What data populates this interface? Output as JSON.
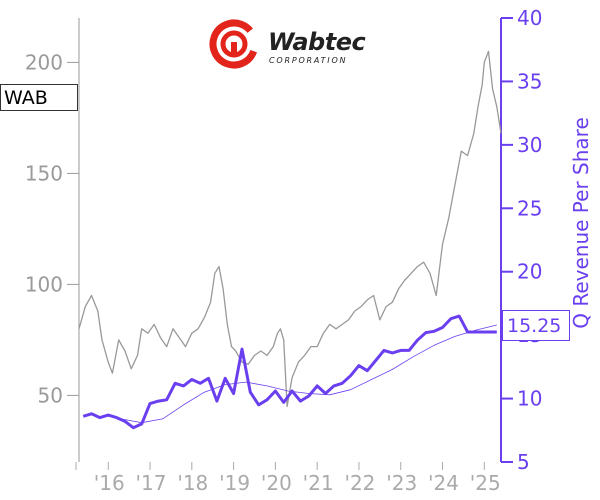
{
  "ticker": "WAB",
  "value_label": "15.25",
  "logo": {
    "name": "Wabtec",
    "subtitle": "CORPORATION"
  },
  "colors": {
    "price": "#999999",
    "revenue": "#6a3ff0",
    "axis_left": "#9a9a9a",
    "axis_right": "#6a3ff0"
  },
  "chart_data": {
    "type": "line",
    "title": "",
    "xlabel": "",
    "ylabel_left": "",
    "ylabel_right": "Q Revenue Per Share",
    "x_tick_labels": [
      "'16",
      "'17",
      "'18",
      "'19",
      "'20",
      "'21",
      "'22",
      "'23",
      "'24",
      "'25"
    ],
    "x_range": [
      2015.3,
      2025.4
    ],
    "y_left_range": [
      20,
      220
    ],
    "y_left_ticks": [
      50,
      100,
      150,
      200
    ],
    "y_right_range": [
      5,
      40
    ],
    "y_right_ticks": [
      5,
      10,
      15,
      20,
      25,
      30,
      35,
      40
    ],
    "series": [
      {
        "name": "WAB",
        "axis": "left",
        "x": [
          2015.3,
          2015.45,
          2015.6,
          2015.75,
          2015.85,
          2016.0,
          2016.1,
          2016.25,
          2016.4,
          2016.55,
          2016.7,
          2016.8,
          2016.95,
          2017.1,
          2017.25,
          2017.4,
          2017.55,
          2017.7,
          2017.85,
          2018.0,
          2018.15,
          2018.3,
          2018.45,
          2018.55,
          2018.65,
          2018.75,
          2018.85,
          2018.95,
          2019.05,
          2019.2,
          2019.35,
          2019.5,
          2019.65,
          2019.8,
          2019.95,
          2020.05,
          2020.12,
          2020.2,
          2020.28,
          2020.4,
          2020.55,
          2020.7,
          2020.85,
          2021.0,
          2021.15,
          2021.3,
          2021.45,
          2021.6,
          2021.75,
          2021.9,
          2022.05,
          2022.2,
          2022.35,
          2022.5,
          2022.65,
          2022.8,
          2022.95,
          2023.1,
          2023.25,
          2023.4,
          2023.55,
          2023.7,
          2023.85,
          2024.0,
          2024.15,
          2024.3,
          2024.45,
          2024.6,
          2024.75,
          2024.85,
          2024.95,
          2025.0,
          2025.1,
          2025.2,
          2025.3,
          2025.4
        ],
        "values": [
          80,
          90,
          95,
          88,
          75,
          65,
          60,
          75,
          70,
          62,
          68,
          80,
          78,
          82,
          76,
          72,
          80,
          76,
          72,
          78,
          80,
          85,
          92,
          105,
          108,
          98,
          82,
          72,
          70,
          65,
          64,
          68,
          70,
          68,
          72,
          78,
          80,
          75,
          45,
          58,
          65,
          68,
          72,
          72,
          78,
          82,
          80,
          82,
          84,
          88,
          90,
          93,
          95,
          84,
          90,
          92,
          98,
          102,
          105,
          108,
          110,
          105,
          95,
          118,
          130,
          145,
          160,
          158,
          168,
          180,
          190,
          200,
          205,
          188,
          180,
          168
        ]
      },
      {
        "name": "Q Revenue Per Share",
        "axis": "right",
        "x": [
          2015.4,
          2015.6,
          2015.8,
          2016.0,
          2016.2,
          2016.4,
          2016.6,
          2016.8,
          2017.0,
          2017.2,
          2017.4,
          2017.6,
          2017.8,
          2018.0,
          2018.2,
          2018.4,
          2018.6,
          2018.8,
          2019.0,
          2019.2,
          2019.4,
          2019.6,
          2019.8,
          2020.0,
          2020.2,
          2020.4,
          2020.6,
          2020.8,
          2021.0,
          2021.2,
          2021.4,
          2021.6,
          2021.8,
          2022.0,
          2022.2,
          2022.4,
          2022.6,
          2022.8,
          2023.0,
          2023.2,
          2023.4,
          2023.6,
          2023.8,
          2024.0,
          2024.2,
          2024.4,
          2024.6,
          2024.8,
          2025.0,
          2025.2,
          2025.3
        ],
        "values": [
          8.6,
          8.8,
          8.5,
          8.7,
          8.5,
          8.2,
          7.7,
          8.0,
          9.6,
          9.8,
          9.9,
          11.2,
          11.0,
          11.5,
          11.2,
          11.6,
          9.8,
          11.6,
          10.4,
          13.9,
          10.5,
          9.5,
          9.9,
          10.6,
          9.7,
          10.6,
          9.8,
          10.2,
          11.0,
          10.4,
          11.0,
          11.2,
          11.8,
          12.6,
          12.2,
          13.0,
          13.8,
          13.6,
          13.8,
          13.8,
          14.6,
          15.2,
          15.3,
          15.6,
          16.3,
          16.5,
          15.25,
          15.25,
          15.25,
          15.25,
          15.25
        ]
      },
      {
        "name": "",
        "axis": "right",
        "x": [
          2016.3,
          2016.8,
          2017.3,
          2017.8,
          2018.3,
          2018.8,
          2019.3,
          2019.8,
          2020.3,
          2020.8,
          2021.3,
          2021.8,
          2022.3,
          2022.8,
          2023.3,
          2023.8,
          2024.3,
          2024.8,
          2025.3
        ],
        "values": [
          8.4,
          8.1,
          8.4,
          9.5,
          10.5,
          11.1,
          11.3,
          11.0,
          10.6,
          10.4,
          10.3,
          10.7,
          11.5,
          12.3,
          13.3,
          14.2,
          14.9,
          15.4,
          15.8
        ]
      }
    ]
  }
}
